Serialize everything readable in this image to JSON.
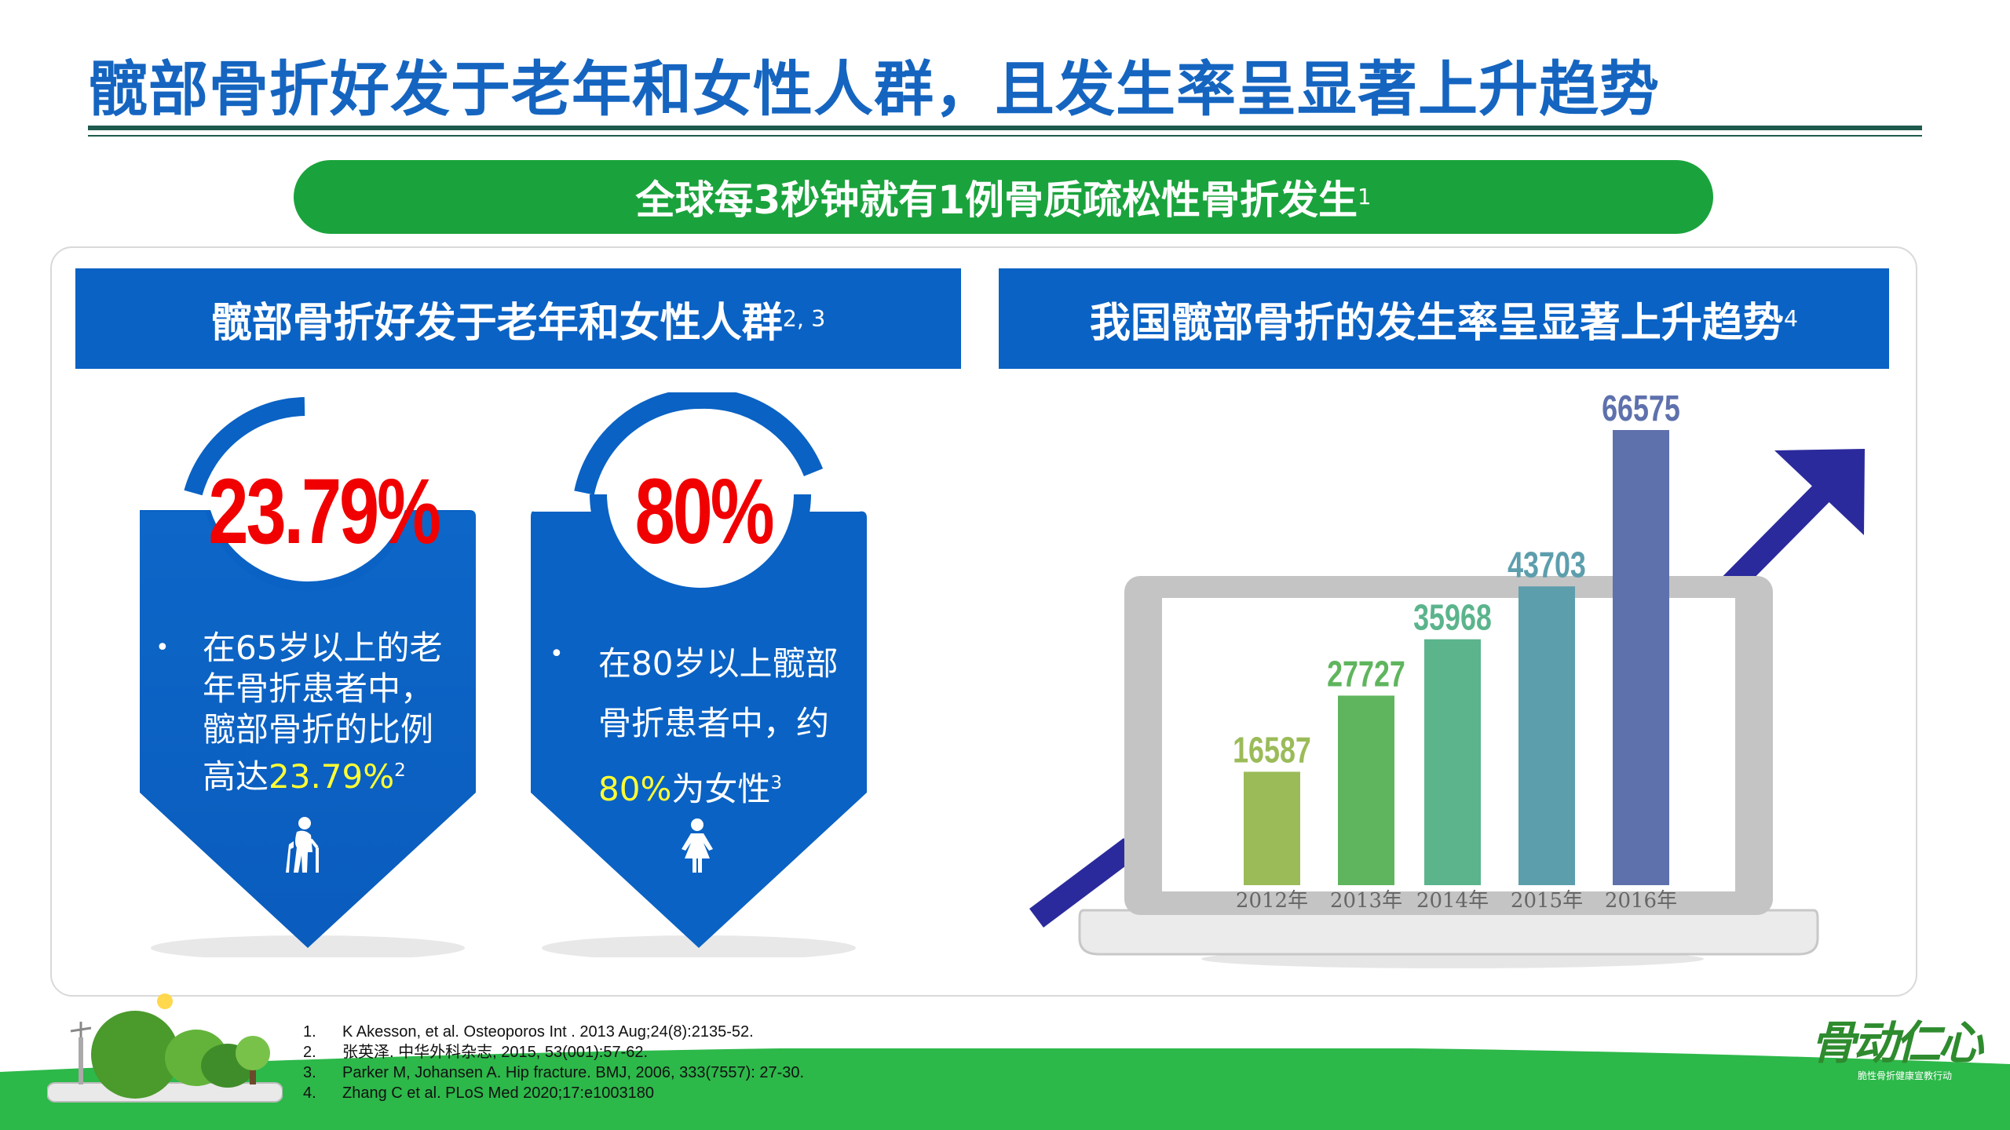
{
  "title": "髋部骨折好发于老年和女性人群，且发生率呈显著上升趋势",
  "banner": {
    "text": "全球每3秒钟就有1例骨质疏松性骨折发生",
    "ref": "1"
  },
  "left_panel": {
    "header": "髋部骨折好发于老年和女性人群",
    "header_ref": "2, 3",
    "stats": [
      {
        "percent": "23.79%",
        "bullet": "•",
        "text_lines": [
          "在65岁以上的老",
          "年骨折患者中，",
          "髋部骨折的比例"
        ],
        "last_prefix": "高达",
        "highlight": "23.79%",
        "last_suffix": "",
        "ref": "2",
        "icon": "elderly-person-icon"
      },
      {
        "percent": "80%",
        "bullet": "•",
        "text_lines": [
          "在80岁以上髋部",
          "骨折患者中，约"
        ],
        "last_prefix": "",
        "highlight": "80%",
        "last_suffix": "为女性",
        "ref": "3",
        "icon": "woman-icon"
      }
    ]
  },
  "right_panel": {
    "header": "我国髋部骨折的发生率呈显著上升趋势",
    "header_ref": "4"
  },
  "chart_data": {
    "type": "bar",
    "categories": [
      "2012年",
      "2013年",
      "2014年",
      "2015年",
      "2016年"
    ],
    "values": [
      16587,
      27727,
      35968,
      43703,
      66575
    ],
    "colors": [
      "#9bbb59",
      "#5fb55e",
      "#5bb48c",
      "#5d9ead",
      "#5e71ad"
    ],
    "ylim": [
      0,
      66575
    ]
  },
  "references": [
    {
      "num": "1.",
      "text": "K Akesson, et al. Osteoporos Int . 2013 Aug;24(8):2135-52."
    },
    {
      "num": "2.",
      "text": "张英泽. 中华外科杂志, 2015, 53(001):57-62."
    },
    {
      "num": "3.",
      "text": "Parker M, Johansen A. Hip fracture. BMJ, 2006, 333(7557): 27-30."
    },
    {
      "num": "4.",
      "text": "Zhang C et al. PLoS Med 2020;17:e1003180"
    }
  ],
  "logo": {
    "text": "骨动仁心",
    "subtitle": "脆性骨折健康宣教行动"
  }
}
